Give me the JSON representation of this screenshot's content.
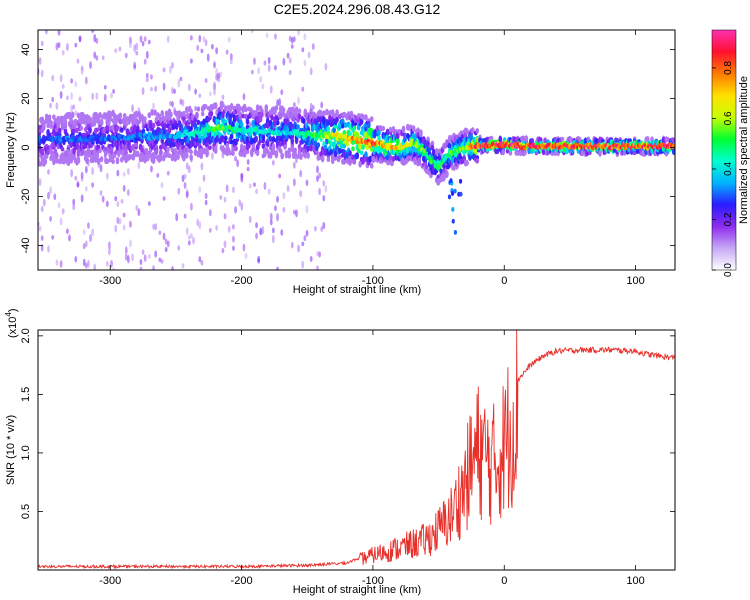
{
  "figure_title": "C2E5.2024.296.08.43.G12",
  "chart_data": [
    {
      "type": "heatmap",
      "xlabel": "Height of straight line (km)",
      "ylabel": "Frequency (Hz)",
      "xlim": [
        -355,
        130
      ],
      "ylim": [
        -50,
        48
      ],
      "xticks": [
        -300,
        -200,
        -100,
        0,
        100
      ],
      "yticks": [
        -40,
        -20,
        0,
        20,
        40
      ],
      "x_tick_labels": [
        "-300",
        "-200",
        "-100",
        "0",
        "100"
      ],
      "y_tick_labels": [
        "-40",
        "-20",
        "0",
        "20",
        "40"
      ],
      "colorbar": {
        "label": "Normalized spectral amplitude",
        "range": [
          0,
          0.95
        ],
        "ticks": [
          0.0,
          0.2,
          0.4,
          0.6,
          0.8
        ],
        "tick_labels": [
          "0.0",
          "0.2",
          "0.4",
          "0.6",
          "0.8"
        ],
        "colormap": [
          "#ffffff",
          "#c7a8f5",
          "#8e2bf0",
          "#2b1cff",
          "#00b4ff",
          "#00ffd0",
          "#00ff30",
          "#c8ff00",
          "#ffe000",
          "#ff7a00",
          "#ff1030",
          "#ff30b0"
        ]
      },
      "ridge": {
        "x": [
          -355,
          -300,
          -250,
          -215,
          -200,
          -160,
          -140,
          -120,
          -100,
          -80,
          -70,
          -60,
          -50,
          -45,
          -40,
          -30,
          -20,
          -10,
          0,
          20,
          50,
          100,
          130
        ],
        "frequency": [
          3,
          4,
          5,
          8,
          7,
          6,
          5,
          4,
          2,
          0,
          2,
          -2,
          -8,
          -5,
          -2,
          0,
          1,
          1,
          1,
          0.5,
          0.5,
          0.5,
          0.5
        ],
        "normalized_amplitude": [
          0.3,
          0.3,
          0.35,
          0.55,
          0.45,
          0.4,
          0.55,
          0.75,
          0.8,
          0.7,
          0.6,
          0.55,
          0.5,
          0.5,
          0.55,
          0.6,
          0.85,
          0.85,
          0.9,
          0.85,
          0.85,
          0.85,
          0.85
        ]
      },
      "grid": false
    },
    {
      "type": "line",
      "xlabel": "Height of straight line (km)",
      "ylabel": "SNR (10 * v/v)",
      "y_scale_label": "(x10",
      "y_scale_exponent": "4",
      "y_scale_suffix": ")",
      "xlim": [
        -355,
        130
      ],
      "ylim": [
        0,
        2.05
      ],
      "xticks": [
        -300,
        -200,
        -100,
        0,
        100
      ],
      "yticks": [
        0.5,
        1.0,
        1.5,
        2.0
      ],
      "x_tick_labels": [
        "-300",
        "-200",
        "-100",
        "0",
        "100"
      ],
      "y_tick_labels": [
        "0.5",
        "1.0",
        "1.5",
        "2.0"
      ],
      "series": [
        {
          "color": "#e8302a",
          "x": [
            -355,
            -300,
            -250,
            -200,
            -150,
            -120,
            -100,
            -80,
            -60,
            -50,
            -40,
            -30,
            -25,
            -20,
            -15,
            -10,
            -5,
            0,
            5,
            10,
            20,
            30,
            40,
            60,
            80,
            100,
            110,
            130
          ],
          "values": [
            0.03,
            0.03,
            0.03,
            0.03,
            0.04,
            0.06,
            0.15,
            0.22,
            0.3,
            0.4,
            0.55,
            0.85,
            1.05,
            1.2,
            1.15,
            1.05,
            1.1,
            1.25,
            1.45,
            1.62,
            1.75,
            1.83,
            1.87,
            1.88,
            1.88,
            1.87,
            1.84,
            1.81
          ]
        }
      ],
      "grid": false
    }
  ]
}
